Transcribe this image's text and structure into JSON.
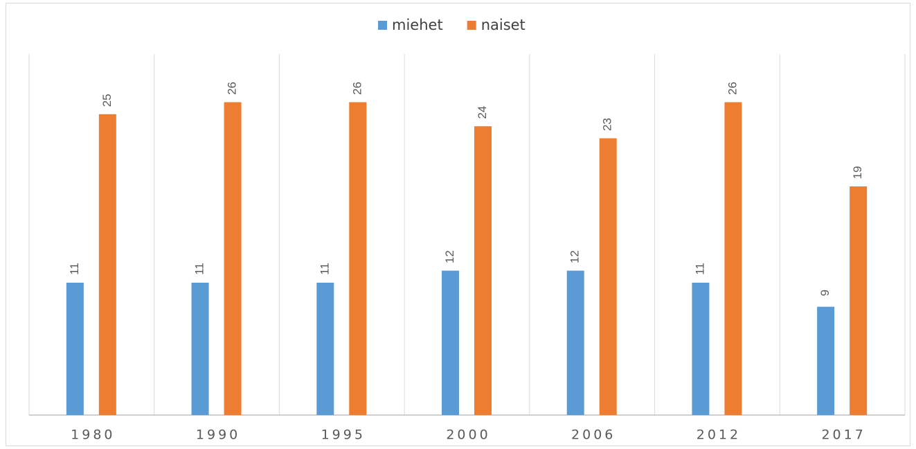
{
  "chart_data": {
    "type": "bar",
    "categories": [
      "1980",
      "1990",
      "1995",
      "2000",
      "2006",
      "2012",
      "2017"
    ],
    "series": [
      {
        "name": "miehet",
        "color": "#5b9bd5",
        "values": [
          11,
          11,
          11,
          12,
          12,
          11,
          9
        ]
      },
      {
        "name": "naiset",
        "color": "#ed7d31",
        "values": [
          25,
          26,
          26,
          24,
          23,
          26,
          19
        ]
      }
    ],
    "ylim": [
      0,
      30
    ],
    "legend": "top"
  }
}
